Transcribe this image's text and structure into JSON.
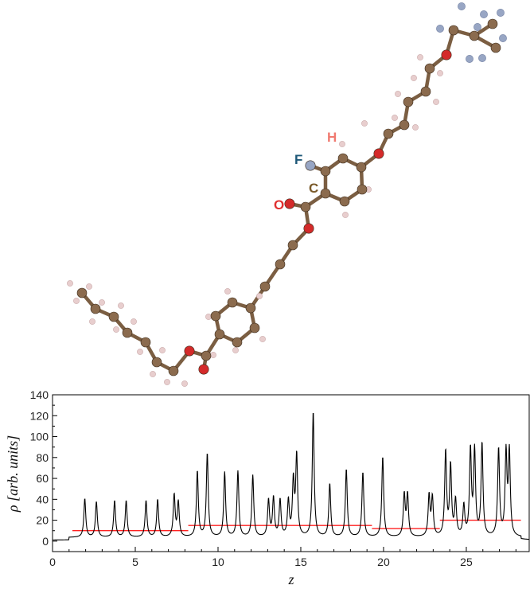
{
  "molecule": {
    "labels": [
      {
        "text": "H",
        "color": "#f07a70"
      },
      {
        "text": "F",
        "color": "#1e5878"
      },
      {
        "text": "C",
        "color": "#7a5a2a"
      },
      {
        "text": "O",
        "color": "#e03030"
      }
    ],
    "colors": {
      "carbon": "#8b6b4e",
      "hydrogen": "#e8cece",
      "oxygen": "#d42a2a",
      "fluorine": "#98a6c4"
    }
  },
  "chart_data": {
    "type": "line",
    "xlabel": "z",
    "ylabel": "ρ [arb. units]",
    "xlim": [
      0,
      28.8
    ],
    "ylim": [
      -10,
      140
    ],
    "xticks": [
      0,
      5,
      10,
      15,
      20,
      25
    ],
    "yticks": [
      0,
      20,
      40,
      60,
      80,
      100,
      120,
      140
    ],
    "baseline": 1,
    "line_color": "#000000",
    "peaks": [
      {
        "x": 1.95,
        "y": 40
      },
      {
        "x": 2.65,
        "y": 37
      },
      {
        "x": 3.75,
        "y": 38
      },
      {
        "x": 4.45,
        "y": 38
      },
      {
        "x": 5.65,
        "y": 38
      },
      {
        "x": 6.35,
        "y": 39
      },
      {
        "x": 7.35,
        "y": 43
      },
      {
        "x": 7.6,
        "y": 36
      },
      {
        "x": 8.75,
        "y": 66
      },
      {
        "x": 9.35,
        "y": 83
      },
      {
        "x": 10.4,
        "y": 65
      },
      {
        "x": 11.2,
        "y": 66
      },
      {
        "x": 12.1,
        "y": 62
      },
      {
        "x": 13.05,
        "y": 38
      },
      {
        "x": 13.35,
        "y": 40
      },
      {
        "x": 13.75,
        "y": 38
      },
      {
        "x": 14.25,
        "y": 37
      },
      {
        "x": 14.55,
        "y": 55
      },
      {
        "x": 14.75,
        "y": 80
      },
      {
        "x": 15.75,
        "y": 123
      },
      {
        "x": 16.75,
        "y": 54
      },
      {
        "x": 17.75,
        "y": 68
      },
      {
        "x": 18.75,
        "y": 65
      },
      {
        "x": 19.95,
        "y": 80
      },
      {
        "x": 21.25,
        "y": 43
      },
      {
        "x": 21.45,
        "y": 43
      },
      {
        "x": 22.75,
        "y": 42
      },
      {
        "x": 22.95,
        "y": 40
      },
      {
        "x": 23.75,
        "y": 84
      },
      {
        "x": 24.05,
        "y": 70
      },
      {
        "x": 24.35,
        "y": 37
      },
      {
        "x": 24.85,
        "y": 32
      },
      {
        "x": 25.25,
        "y": 85
      },
      {
        "x": 25.5,
        "y": 84
      },
      {
        "x": 25.95,
        "y": 92
      },
      {
        "x": 26.95,
        "y": 87
      },
      {
        "x": 27.4,
        "y": 82
      },
      {
        "x": 27.6,
        "y": 83
      }
    ],
    "mean_segments": [
      {
        "x0": 1.2,
        "x1": 8.2,
        "y": 10,
        "color": "#ff2020"
      },
      {
        "x0": 8.2,
        "x1": 19.3,
        "y": 15,
        "color": "#ff2020"
      },
      {
        "x0": 19.3,
        "x1": 23.4,
        "y": 12,
        "color": "#ff2020"
      },
      {
        "x0": 23.4,
        "x1": 28.3,
        "y": 20,
        "color": "#ff2020"
      }
    ]
  }
}
